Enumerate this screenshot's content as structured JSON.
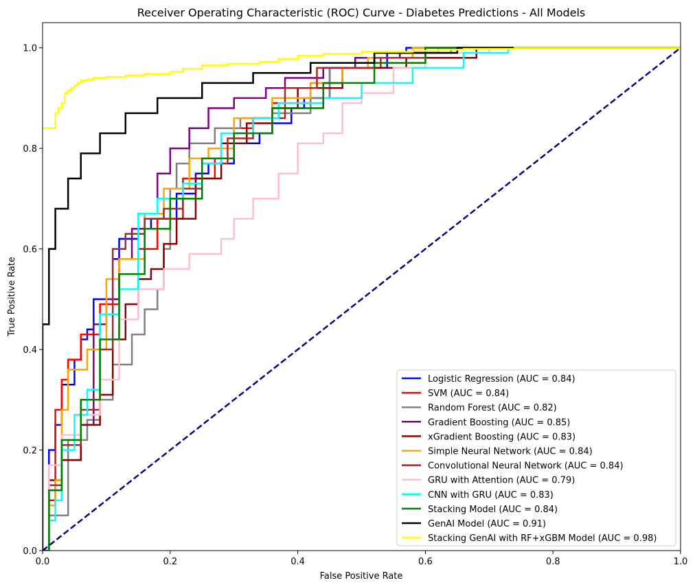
{
  "chart_data": {
    "type": "line",
    "title": "Receiver Operating Characteristic (ROC) Curve - Diabetes Predictions - All Models",
    "xlabel": "False Positive Rate",
    "ylabel": "True Positive Rate",
    "xlim": [
      0.0,
      1.0
    ],
    "ylim": [
      0.0,
      1.05
    ],
    "xticks": [
      "0.0",
      "0.2",
      "0.4",
      "0.6",
      "0.8",
      "1.0"
    ],
    "yticks": [
      "0.0",
      "0.2",
      "0.4",
      "0.6",
      "0.8",
      "1.0"
    ],
    "grid": false,
    "legend_position": "bottom-right",
    "reference_line": {
      "color": "#000080",
      "style": "dashed",
      "x": [
        0,
        1
      ],
      "y": [
        0,
        1
      ]
    },
    "series": [
      {
        "name": "Logistic Regression (AUC = 0.84)",
        "color": "#0000ff",
        "x": [
          0,
          0.01,
          0.01,
          0.02,
          0.02,
          0.03,
          0.03,
          0.05,
          0.05,
          0.06,
          0.06,
          0.07,
          0.07,
          0.08,
          0.08,
          0.11,
          0.11,
          0.12,
          0.12,
          0.15,
          0.15,
          0.17,
          0.17,
          0.21,
          0.21,
          0.24,
          0.24,
          0.26,
          0.26,
          0.3,
          0.3,
          0.34,
          0.34,
          0.36,
          0.36,
          0.39,
          0.39,
          0.41,
          0.41,
          0.45,
          0.45,
          0.54,
          0.54,
          0.57,
          0.57,
          0.72,
          0.72,
          1.0
        ],
        "y": [
          0,
          0,
          0.2,
          0.2,
          0.25,
          0.25,
          0.33,
          0.33,
          0.38,
          0.38,
          0.42,
          0.42,
          0.44,
          0.44,
          0.5,
          0.5,
          0.58,
          0.58,
          0.62,
          0.62,
          0.64,
          0.64,
          0.66,
          0.66,
          0.71,
          0.71,
          0.75,
          0.75,
          0.77,
          0.77,
          0.81,
          0.81,
          0.83,
          0.83,
          0.85,
          0.85,
          0.88,
          0.88,
          0.9,
          0.9,
          0.96,
          0.96,
          0.99,
          0.99,
          1.0,
          1.0,
          1.0,
          1.0
        ]
      },
      {
        "name": "SVM (AUC = 0.84)",
        "color": "#ff0000",
        "x": [
          0,
          0.01,
          0.01,
          0.02,
          0.02,
          0.03,
          0.03,
          0.04,
          0.04,
          0.06,
          0.06,
          0.09,
          0.09,
          0.12,
          0.12,
          0.15,
          0.15,
          0.18,
          0.18,
          0.22,
          0.22,
          0.27,
          0.27,
          0.3,
          0.3,
          0.33,
          0.33,
          0.36,
          0.36,
          0.42,
          0.42,
          0.47,
          0.47,
          0.53,
          0.53,
          0.6,
          0.6,
          1.0
        ],
        "y": [
          0,
          0,
          0.1,
          0.1,
          0.28,
          0.28,
          0.34,
          0.34,
          0.38,
          0.38,
          0.43,
          0.43,
          0.49,
          0.49,
          0.55,
          0.55,
          0.6,
          0.6,
          0.66,
          0.66,
          0.74,
          0.74,
          0.78,
          0.78,
          0.84,
          0.84,
          0.86,
          0.86,
          0.89,
          0.89,
          0.93,
          0.93,
          0.96,
          0.96,
          0.98,
          0.98,
          1.0,
          1.0
        ]
      },
      {
        "name": "Random Forest (AUC = 0.82)",
        "color": "#808080",
        "x": [
          0,
          0.01,
          0.01,
          0.04,
          0.04,
          0.07,
          0.07,
          0.09,
          0.09,
          0.11,
          0.11,
          0.14,
          0.14,
          0.16,
          0.16,
          0.18,
          0.18,
          0.19,
          0.19,
          0.2,
          0.2,
          0.21,
          0.21,
          0.23,
          0.23,
          0.27,
          0.27,
          0.31,
          0.31,
          0.36,
          0.36,
          0.42,
          0.42,
          0.45,
          0.45,
          0.52,
          0.52,
          0.64,
          0.64,
          1.0
        ],
        "y": [
          0,
          0,
          0.07,
          0.07,
          0.22,
          0.22,
          0.26,
          0.26,
          0.3,
          0.3,
          0.37,
          0.37,
          0.43,
          0.43,
          0.48,
          0.48,
          0.52,
          0.52,
          0.6,
          0.6,
          0.72,
          0.72,
          0.77,
          0.77,
          0.81,
          0.81,
          0.84,
          0.84,
          0.86,
          0.86,
          0.87,
          0.87,
          0.9,
          0.9,
          0.96,
          0.96,
          0.99,
          0.99,
          1.0,
          1.0
        ]
      },
      {
        "name": "Gradient Boosting (AUC = 0.85)",
        "color": "#800080",
        "x": [
          0,
          0.01,
          0.01,
          0.03,
          0.03,
          0.06,
          0.06,
          0.08,
          0.08,
          0.1,
          0.1,
          0.12,
          0.12,
          0.14,
          0.14,
          0.16,
          0.16,
          0.18,
          0.18,
          0.2,
          0.2,
          0.23,
          0.23,
          0.26,
          0.26,
          0.3,
          0.3,
          0.35,
          0.35,
          0.38,
          0.38,
          0.44,
          0.44,
          0.49,
          0.49,
          0.56,
          0.56,
          0.62,
          0.62,
          1.0
        ],
        "y": [
          0,
          0,
          0.12,
          0.12,
          0.18,
          0.18,
          0.25,
          0.25,
          0.45,
          0.45,
          0.5,
          0.5,
          0.58,
          0.58,
          0.64,
          0.64,
          0.67,
          0.67,
          0.75,
          0.75,
          0.8,
          0.8,
          0.84,
          0.84,
          0.88,
          0.88,
          0.9,
          0.9,
          0.92,
          0.92,
          0.94,
          0.94,
          0.96,
          0.96,
          0.98,
          0.98,
          0.99,
          0.99,
          1.0,
          1.0
        ]
      },
      {
        "name": "xGradient Boosting (AUC = 0.83)",
        "color": "#8b0000",
        "x": [
          0,
          0.01,
          0.01,
          0.03,
          0.03,
          0.06,
          0.06,
          0.09,
          0.09,
          0.11,
          0.11,
          0.13,
          0.13,
          0.15,
          0.15,
          0.17,
          0.17,
          0.19,
          0.19,
          0.21,
          0.21,
          0.24,
          0.24,
          0.28,
          0.28,
          0.32,
          0.32,
          0.36,
          0.36,
          0.4,
          0.4,
          0.47,
          0.47,
          0.57,
          0.57,
          0.68,
          0.68,
          1.0
        ],
        "y": [
          0,
          0,
          0.14,
          0.14,
          0.18,
          0.18,
          0.25,
          0.25,
          0.31,
          0.31,
          0.42,
          0.42,
          0.49,
          0.49,
          0.54,
          0.54,
          0.56,
          0.56,
          0.61,
          0.61,
          0.66,
          0.66,
          0.74,
          0.74,
          0.81,
          0.81,
          0.85,
          0.85,
          0.88,
          0.88,
          0.92,
          0.92,
          0.96,
          0.96,
          0.98,
          0.98,
          1.0,
          1.0
        ]
      },
      {
        "name": "Simple Neural Network (AUC = 0.84)",
        "color": "#ffa500",
        "x": [
          0,
          0.01,
          0.01,
          0.02,
          0.02,
          0.03,
          0.03,
          0.04,
          0.04,
          0.07,
          0.07,
          0.1,
          0.1,
          0.12,
          0.12,
          0.16,
          0.16,
          0.19,
          0.19,
          0.23,
          0.23,
          0.26,
          0.26,
          0.3,
          0.3,
          0.36,
          0.36,
          0.42,
          0.42,
          0.47,
          0.47,
          0.51,
          0.51,
          0.58,
          0.58,
          1.0
        ],
        "y": [
          0,
          0,
          0.09,
          0.09,
          0.14,
          0.14,
          0.28,
          0.28,
          0.36,
          0.36,
          0.4,
          0.4,
          0.54,
          0.54,
          0.58,
          0.58,
          0.67,
          0.67,
          0.72,
          0.72,
          0.78,
          0.78,
          0.8,
          0.8,
          0.86,
          0.86,
          0.9,
          0.9,
          0.93,
          0.93,
          0.96,
          0.96,
          0.98,
          0.98,
          1.0,
          1.0
        ]
      },
      {
        "name": "Convolutional Neural Network (AUC = 0.84)",
        "color": "#a52a2a",
        "x": [
          0,
          0.01,
          0.01,
          0.03,
          0.03,
          0.06,
          0.06,
          0.09,
          0.09,
          0.11,
          0.11,
          0.13,
          0.13,
          0.16,
          0.16,
          0.19,
          0.19,
          0.22,
          0.22,
          0.25,
          0.25,
          0.29,
          0.29,
          0.33,
          0.33,
          0.38,
          0.38,
          0.43,
          0.43,
          0.52,
          0.52,
          0.6,
          0.6,
          1.0
        ],
        "y": [
          0,
          0,
          0.13,
          0.13,
          0.21,
          0.21,
          0.28,
          0.28,
          0.4,
          0.4,
          0.6,
          0.6,
          0.63,
          0.63,
          0.66,
          0.66,
          0.68,
          0.68,
          0.72,
          0.72,
          0.77,
          0.77,
          0.82,
          0.82,
          0.86,
          0.86,
          0.92,
          0.92,
          0.96,
          0.96,
          0.98,
          0.98,
          1.0,
          1.0
        ]
      },
      {
        "name": "GRU with Attention (AUC = 0.79)",
        "color": "#ffc0cb",
        "x": [
          0,
          0.01,
          0.01,
          0.03,
          0.03,
          0.06,
          0.06,
          0.09,
          0.09,
          0.12,
          0.12,
          0.15,
          0.15,
          0.19,
          0.19,
          0.23,
          0.23,
          0.28,
          0.28,
          0.3,
          0.3,
          0.33,
          0.33,
          0.37,
          0.37,
          0.4,
          0.4,
          0.44,
          0.44,
          0.47,
          0.47,
          0.5,
          0.5,
          0.55,
          0.55,
          0.6,
          0.6,
          0.7,
          0.7,
          1.0
        ],
        "y": [
          0,
          0,
          0.17,
          0.17,
          0.23,
          0.23,
          0.27,
          0.27,
          0.34,
          0.34,
          0.46,
          0.46,
          0.52,
          0.52,
          0.56,
          0.56,
          0.59,
          0.59,
          0.62,
          0.62,
          0.66,
          0.66,
          0.7,
          0.7,
          0.75,
          0.75,
          0.81,
          0.81,
          0.83,
          0.83,
          0.89,
          0.89,
          0.91,
          0.91,
          0.96,
          0.96,
          0.99,
          0.99,
          1.0,
          1.0
        ]
      },
      {
        "name": "CNN with GRU (AUC = 0.83)",
        "color": "#00ffff",
        "x": [
          0,
          0.01,
          0.01,
          0.02,
          0.02,
          0.03,
          0.03,
          0.05,
          0.05,
          0.07,
          0.07,
          0.09,
          0.09,
          0.12,
          0.12,
          0.15,
          0.15,
          0.18,
          0.18,
          0.22,
          0.22,
          0.25,
          0.25,
          0.28,
          0.28,
          0.33,
          0.33,
          0.37,
          0.37,
          0.44,
          0.44,
          0.5,
          0.5,
          0.58,
          0.58,
          0.66,
          0.66,
          0.73,
          0.73,
          1.0
        ],
        "y": [
          0,
          0,
          0.06,
          0.06,
          0.1,
          0.1,
          0.2,
          0.2,
          0.27,
          0.27,
          0.32,
          0.32,
          0.47,
          0.47,
          0.52,
          0.52,
          0.67,
          0.67,
          0.7,
          0.7,
          0.73,
          0.73,
          0.77,
          0.77,
          0.83,
          0.83,
          0.86,
          0.86,
          0.89,
          0.89,
          0.9,
          0.9,
          0.93,
          0.93,
          0.96,
          0.96,
          0.99,
          0.99,
          1.0,
          1.0
        ]
      },
      {
        "name": "Stacking Model (AUC = 0.84)",
        "color": "#008000",
        "x": [
          0,
          0.01,
          0.01,
          0.03,
          0.03,
          0.06,
          0.06,
          0.09,
          0.09,
          0.12,
          0.12,
          0.16,
          0.16,
          0.2,
          0.2,
          0.25,
          0.25,
          0.3,
          0.3,
          0.36,
          0.36,
          0.44,
          0.44,
          0.52,
          0.52,
          0.6,
          0.6,
          1.0
        ],
        "y": [
          0,
          0,
          0.12,
          0.12,
          0.22,
          0.22,
          0.3,
          0.3,
          0.42,
          0.42,
          0.55,
          0.55,
          0.64,
          0.64,
          0.7,
          0.7,
          0.78,
          0.78,
          0.83,
          0.83,
          0.88,
          0.88,
          0.93,
          0.93,
          0.97,
          0.97,
          1.0,
          1.0
        ]
      },
      {
        "name": "GenAI Model (AUC = 0.91)",
        "color": "#000000",
        "x": [
          0,
          0.0,
          0.01,
          0.01,
          0.02,
          0.02,
          0.04,
          0.04,
          0.06,
          0.06,
          0.09,
          0.09,
          0.13,
          0.13,
          0.18,
          0.18,
          0.25,
          0.25,
          0.33,
          0.33,
          0.42,
          0.42,
          0.52,
          0.52,
          0.65,
          0.65,
          1.0
        ],
        "y": [
          0,
          0.45,
          0.45,
          0.6,
          0.6,
          0.68,
          0.68,
          0.74,
          0.74,
          0.79,
          0.79,
          0.83,
          0.83,
          0.87,
          0.87,
          0.9,
          0.9,
          0.93,
          0.93,
          0.95,
          0.95,
          0.97,
          0.97,
          0.99,
          0.99,
          1.0,
          1.0
        ]
      },
      {
        "name": "Stacking GenAI with RF+xGBM Model (AUC = 0.98)",
        "color": "#ffff00",
        "x": [
          0,
          0.0,
          0.02,
          0.02,
          0.025,
          0.025,
          0.03,
          0.03,
          0.035,
          0.035,
          0.04,
          0.04,
          0.045,
          0.045,
          0.05,
          0.05,
          0.055,
          0.055,
          0.06,
          0.06,
          0.07,
          0.07,
          0.08,
          0.08,
          0.1,
          0.1,
          0.13,
          0.13,
          0.16,
          0.16,
          0.2,
          0.2,
          0.22,
          0.22,
          0.25,
          0.25,
          0.29,
          0.29,
          0.34,
          0.34,
          0.37,
          0.37,
          0.4,
          0.4,
          0.44,
          0.44,
          0.5,
          0.5,
          0.58,
          0.58,
          0.62,
          0.62,
          0.66,
          0.66,
          0.74,
          0.74,
          0.8,
          0.8,
          1.0
        ],
        "y": [
          0.84,
          0.84,
          0.84,
          0.87,
          0.87,
          0.88,
          0.88,
          0.89,
          0.89,
          0.91,
          0.91,
          0.915,
          0.915,
          0.92,
          0.92,
          0.925,
          0.925,
          0.93,
          0.93,
          0.935,
          0.935,
          0.937,
          0.937,
          0.94,
          0.94,
          0.942,
          0.942,
          0.945,
          0.945,
          0.948,
          0.948,
          0.952,
          0.952,
          0.958,
          0.958,
          0.965,
          0.965,
          0.968,
          0.968,
          0.972,
          0.972,
          0.978,
          0.978,
          0.984,
          0.984,
          0.988,
          0.988,
          0.992,
          0.992,
          0.994,
          0.994,
          0.996,
          0.996,
          0.998,
          0.998,
          1.0,
          1.0,
          1.0,
          1.0
        ]
      }
    ]
  }
}
